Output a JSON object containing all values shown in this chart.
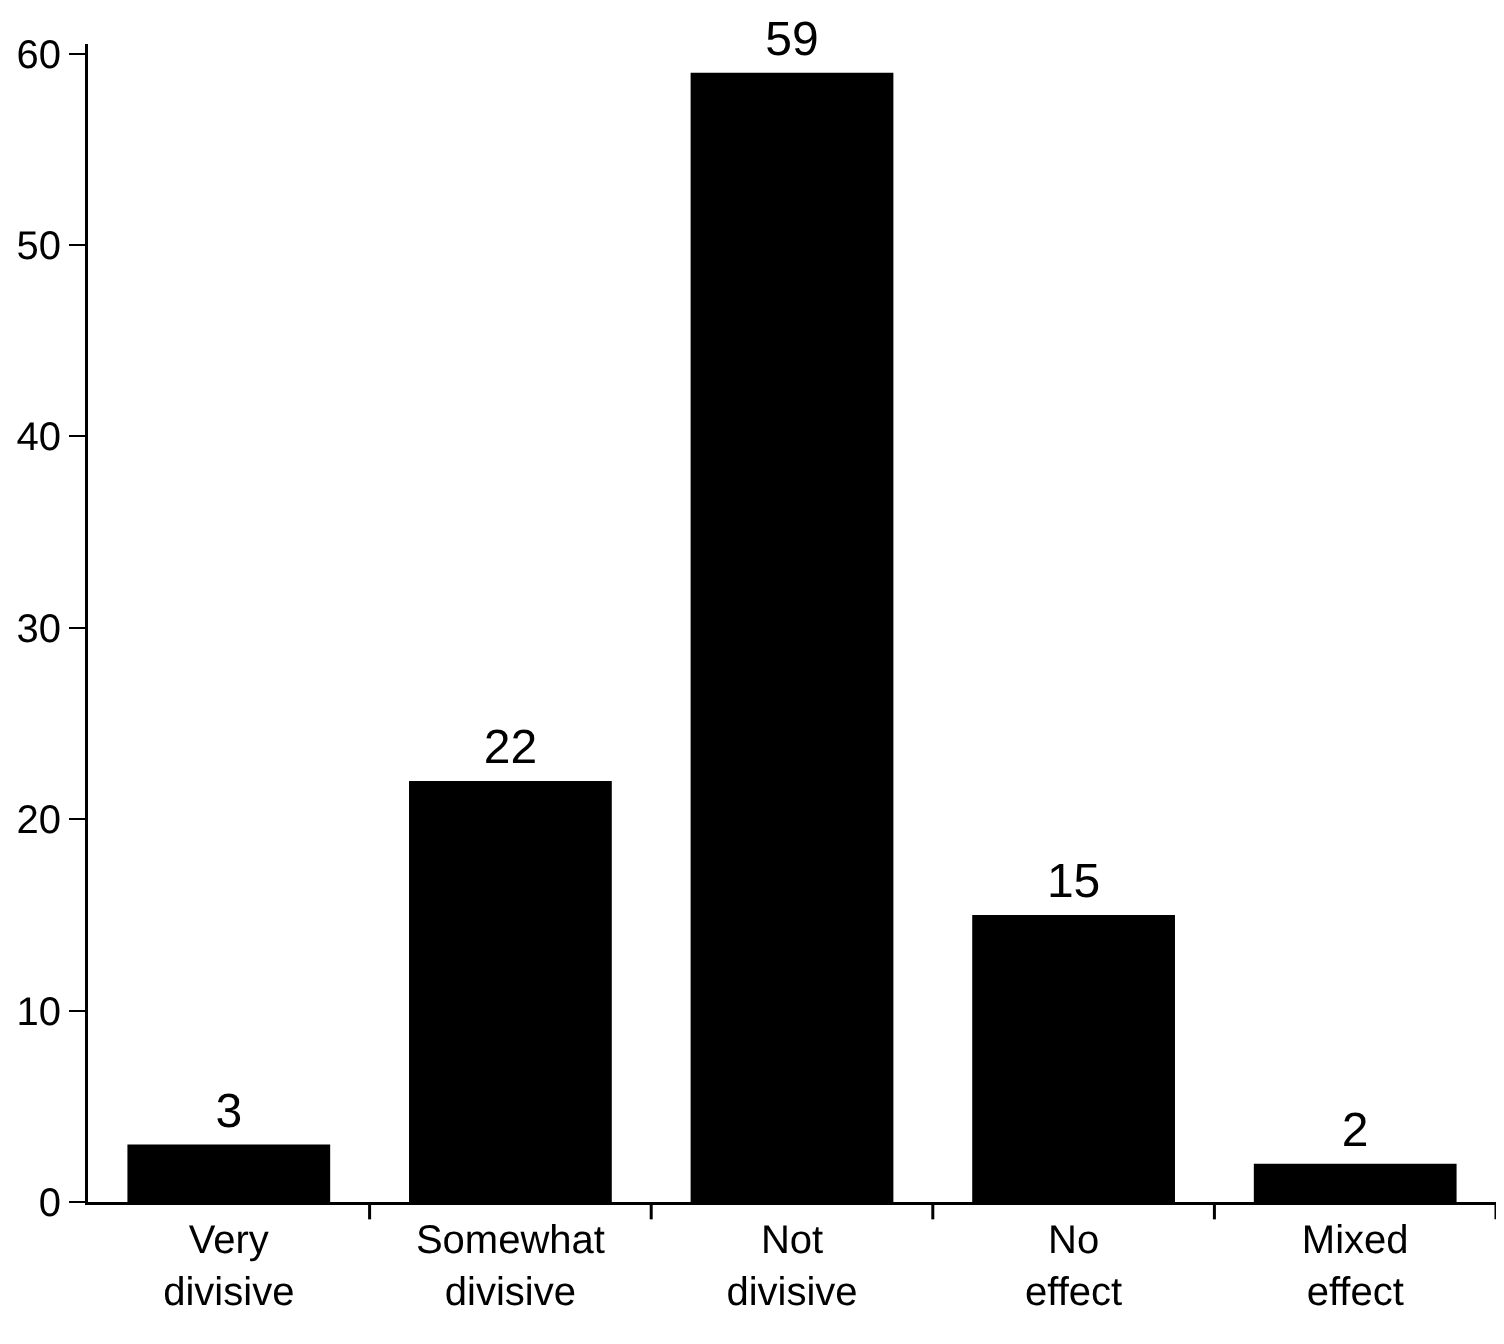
{
  "chart_data": {
    "type": "bar",
    "categories": [
      "Very divisive",
      "Somewhat divisive",
      "Not divisive",
      "No effect",
      "Mixed effect"
    ],
    "values": [
      3,
      22,
      59,
      15,
      2
    ],
    "color": "#000000",
    "ylim": [
      0,
      60.5
    ],
    "yticks": [
      0,
      10,
      20,
      30,
      40,
      50,
      60
    ],
    "grid": false,
    "legend": false,
    "data_labels": true
  }
}
